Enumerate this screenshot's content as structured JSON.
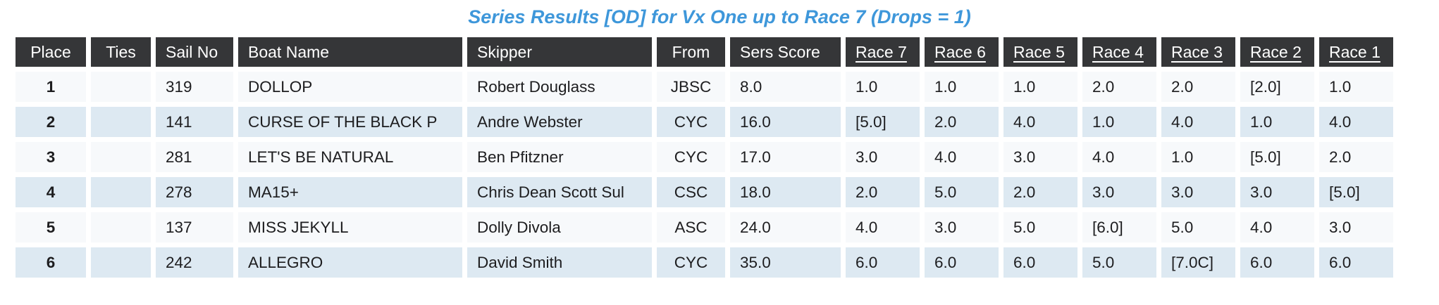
{
  "title": "Series Results [OD] for Vx One up to Race 7 (Drops = 1)",
  "colors": {
    "title_text": "#3e97da",
    "header_bg": "#353638",
    "header_text": "#ffffff",
    "row_odd_bg": "#f7f9fb",
    "row_even_bg": "#dde9f2",
    "body_text": "#1d1d1f"
  },
  "table": {
    "columns": [
      {
        "key": "place",
        "label": "Place",
        "link": false
      },
      {
        "key": "ties",
        "label": "Ties",
        "link": false
      },
      {
        "key": "sail_no",
        "label": "Sail No",
        "link": false
      },
      {
        "key": "boat_name",
        "label": "Boat Name",
        "link": false
      },
      {
        "key": "skipper",
        "label": "Skipper",
        "link": false
      },
      {
        "key": "from",
        "label": "From",
        "link": false
      },
      {
        "key": "sers_score",
        "label": "Sers Score",
        "link": false
      },
      {
        "key": "race_7",
        "label": "Race 7",
        "link": true
      },
      {
        "key": "race_6",
        "label": "Race 6",
        "link": true
      },
      {
        "key": "race_5",
        "label": "Race 5",
        "link": true
      },
      {
        "key": "race_4",
        "label": "Race 4",
        "link": true
      },
      {
        "key": "race_3",
        "label": "Race 3",
        "link": true
      },
      {
        "key": "race_2",
        "label": "Race 2",
        "link": true
      },
      {
        "key": "race_1",
        "label": "Race 1",
        "link": true
      }
    ],
    "rows": [
      {
        "place": "1",
        "ties": "",
        "sail_no": "319",
        "boat_name": "DOLLOP",
        "skipper": "Robert Douglass",
        "from": "JBSC",
        "sers_score": "8.0",
        "race_7": "1.0",
        "race_6": "1.0",
        "race_5": "1.0",
        "race_4": "2.0",
        "race_3": "2.0",
        "race_2": "[2.0]",
        "race_1": "1.0"
      },
      {
        "place": "2",
        "ties": "",
        "sail_no": "141",
        "boat_name": "CURSE OF THE BLACK P",
        "skipper": "Andre Webster",
        "from": "CYC",
        "sers_score": "16.0",
        "race_7": "[5.0]",
        "race_6": "2.0",
        "race_5": "4.0",
        "race_4": "1.0",
        "race_3": "4.0",
        "race_2": "1.0",
        "race_1": "4.0"
      },
      {
        "place": "3",
        "ties": "",
        "sail_no": "281",
        "boat_name": "LET'S BE NATURAL",
        "skipper": "Ben Pfitzner",
        "from": "CYC",
        "sers_score": "17.0",
        "race_7": "3.0",
        "race_6": "4.0",
        "race_5": "3.0",
        "race_4": "4.0",
        "race_3": "1.0",
        "race_2": "[5.0]",
        "race_1": "2.0"
      },
      {
        "place": "4",
        "ties": "",
        "sail_no": "278",
        "boat_name": "MA15+",
        "skipper": "Chris Dean Scott Sul",
        "from": "CSC",
        "sers_score": "18.0",
        "race_7": "2.0",
        "race_6": "5.0",
        "race_5": "2.0",
        "race_4": "3.0",
        "race_3": "3.0",
        "race_2": "3.0",
        "race_1": "[5.0]"
      },
      {
        "place": "5",
        "ties": "",
        "sail_no": "137",
        "boat_name": "MISS JEKYLL",
        "skipper": "Dolly Divola",
        "from": "ASC",
        "sers_score": "24.0",
        "race_7": "4.0",
        "race_6": "3.0",
        "race_5": "5.0",
        "race_4": "[6.0]",
        "race_3": "5.0",
        "race_2": "4.0",
        "race_1": "3.0"
      },
      {
        "place": "6",
        "ties": "",
        "sail_no": "242",
        "boat_name": "ALLEGRO",
        "skipper": "David Smith",
        "from": "CYC",
        "sers_score": "35.0",
        "race_7": "6.0",
        "race_6": "6.0",
        "race_5": "6.0",
        "race_4": "5.0",
        "race_3": "[7.0C]",
        "race_2": "6.0",
        "race_1": "6.0"
      }
    ]
  }
}
